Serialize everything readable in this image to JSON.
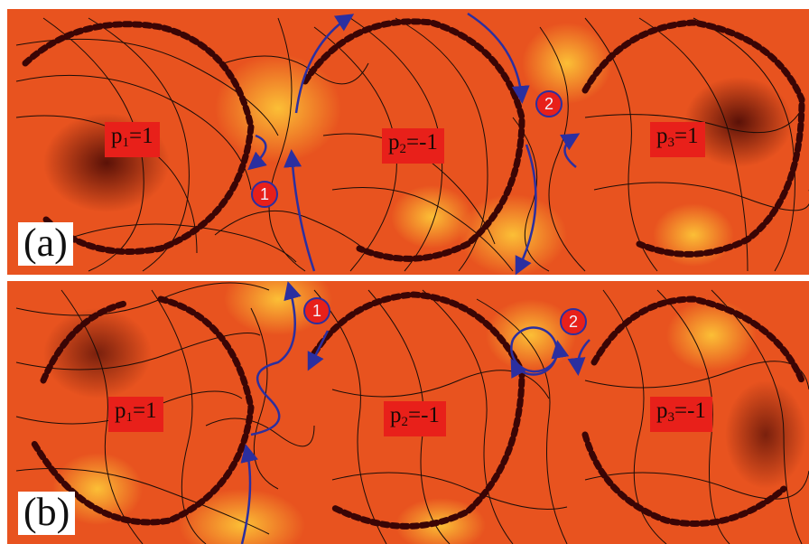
{
  "panels": [
    {
      "id": "a",
      "label": "(a)",
      "charges": [
        {
          "sym": "p",
          "sub": "1",
          "val": "=1"
        },
        {
          "sym": "p",
          "sub": "2",
          "val": "=-1"
        },
        {
          "sym": "p",
          "sub": "3",
          "val": "=1"
        }
      ],
      "markers": [
        "1",
        "2"
      ]
    },
    {
      "id": "b",
      "label": "(b)",
      "charges": [
        {
          "sym": "p",
          "sub": "1",
          "val": "=1"
        },
        {
          "sym": "p",
          "sub": "2",
          "val": "=-1"
        },
        {
          "sym": "p",
          "sub": "3",
          "val": "=-1"
        }
      ],
      "markers": [
        "1",
        "2"
      ]
    }
  ],
  "colors": {
    "field_base": "#e8531f",
    "field_hot": "#ffd23a",
    "defect_core": "#3a0505",
    "streamline": "#1b0d08",
    "trajectory": "#2b2fa0",
    "charge_box": "#e8201a"
  }
}
